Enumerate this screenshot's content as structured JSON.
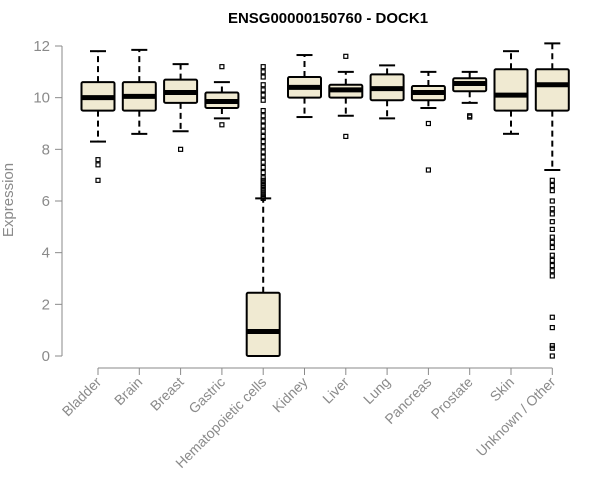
{
  "chart_data": {
    "type": "box",
    "title": "ENSG00000150760 - DOCK1",
    "xlabel": "",
    "ylabel": "Expression",
    "ylim": [
      -0.3,
      12.3
    ],
    "yticks": [
      0,
      2,
      4,
      6,
      8,
      10,
      12
    ],
    "box_fill": "#f0ead2",
    "categories": [
      "Bladder",
      "Brain",
      "Breast",
      "Gastric",
      "Hematopoietic cells",
      "Kidney",
      "Liver",
      "Lung",
      "Pancreas",
      "Prostate",
      "Skin",
      "Unknown / Other"
    ],
    "boxes": [
      {
        "q1": 9.5,
        "median": 10.0,
        "q3": 10.6,
        "whisker_low": 8.3,
        "whisker_high": 11.8,
        "outliers": [
          7.6,
          7.4,
          6.8
        ]
      },
      {
        "q1": 9.5,
        "median": 10.05,
        "q3": 10.6,
        "whisker_low": 8.6,
        "whisker_high": 11.85,
        "outliers": []
      },
      {
        "q1": 9.8,
        "median": 10.2,
        "q3": 10.7,
        "whisker_low": 8.7,
        "whisker_high": 11.3,
        "outliers": [
          8.0
        ]
      },
      {
        "q1": 9.6,
        "median": 9.85,
        "q3": 10.2,
        "whisker_low": 9.2,
        "whisker_high": 10.6,
        "outliers": [
          11.2,
          8.95
        ]
      },
      {
        "q1": 0.0,
        "median": 0.95,
        "q3": 2.45,
        "whisker_low": 0.0,
        "whisker_high": 6.1,
        "outliers": [
          11.2,
          11.0,
          10.8,
          10.5,
          10.3,
          10.1,
          9.9,
          9.5,
          9.3,
          9.1,
          8.9,
          8.7,
          8.5,
          8.3,
          8.1,
          7.9,
          7.7,
          7.5,
          7.3,
          7.1,
          6.9,
          6.8,
          6.7,
          6.6,
          6.5,
          6.4,
          6.3,
          6.2,
          6.15,
          6.1
        ]
      },
      {
        "q1": 10.0,
        "median": 10.4,
        "q3": 10.8,
        "whisker_low": 9.25,
        "whisker_high": 11.65,
        "outliers": []
      },
      {
        "q1": 10.0,
        "median": 10.3,
        "q3": 10.5,
        "whisker_low": 9.3,
        "whisker_high": 11.0,
        "outliers": [
          11.6,
          8.5
        ]
      },
      {
        "q1": 9.9,
        "median": 10.35,
        "q3": 10.9,
        "whisker_low": 9.2,
        "whisker_high": 11.25,
        "outliers": []
      },
      {
        "q1": 9.9,
        "median": 10.2,
        "q3": 10.45,
        "whisker_low": 9.6,
        "whisker_high": 11.0,
        "outliers": [
          9.0,
          7.2
        ]
      },
      {
        "q1": 10.25,
        "median": 10.55,
        "q3": 10.75,
        "whisker_low": 9.8,
        "whisker_high": 11.0,
        "outliers": [
          9.3,
          9.25
        ]
      },
      {
        "q1": 9.5,
        "median": 10.1,
        "q3": 11.1,
        "whisker_low": 8.6,
        "whisker_high": 11.8,
        "outliers": []
      },
      {
        "q1": 9.5,
        "median": 10.5,
        "q3": 11.1,
        "whisker_low": 7.2,
        "whisker_high": 12.1,
        "outliers": [
          6.8,
          6.6,
          6.4,
          6.0,
          5.7,
          5.5,
          5.2,
          4.9,
          4.6,
          4.4,
          4.2,
          3.9,
          3.7,
          3.5,
          3.3,
          3.1,
          1.5,
          1.1,
          0.4,
          0.3,
          0.0
        ]
      }
    ]
  }
}
